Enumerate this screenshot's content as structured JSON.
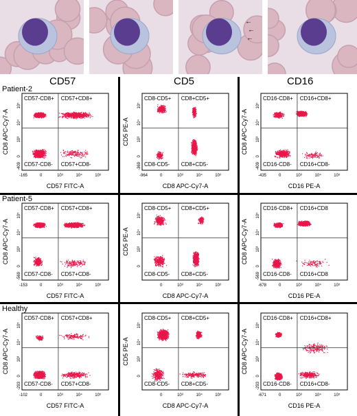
{
  "columns": [
    "CD57",
    "CD5",
    "CD16"
  ],
  "rows": [
    {
      "label": "Patient-2",
      "panels": [
        {
          "x_axis": "CD57 FITC-A",
          "y_axis": "CD8 APC-Cy7-A",
          "q_ul": "CD57-CD8+",
          "q_ur": "CD57+CD8+",
          "q_ll": "CD57-CD8-",
          "q_lr": "CD57+CD8-",
          "x_min": "-165",
          "y_min": "-409",
          "xt": [
            "0",
            "10³",
            "10⁴",
            "10⁵"
          ],
          "yt": [
            "0",
            "10³",
            "10⁴",
            "10⁵"
          ]
        },
        {
          "x_axis": "CD8 APC-Cy7-A",
          "y_axis": "CD5 PE-A",
          "q_ul": "CD8-CD5+",
          "q_ur": "CD8+CD5+",
          "q_ll": "CD8-CD5-",
          "q_lr": "CD8+CD5-",
          "x_min": "-964",
          "y_min": "-369",
          "xt": [
            "0",
            "10³",
            "10⁴",
            "10⁵"
          ],
          "yt": [
            "0",
            "10³",
            "10⁴",
            "10⁵"
          ]
        },
        {
          "x_axis": "CD16 PE-A",
          "y_axis": "CD8 APC-Cy7-A",
          "q_ul": "CD16-CD8+",
          "q_ur": "CD16+CD8+",
          "q_ll": "CD16-CD8-",
          "q_lr": "CD16+CD8-",
          "x_min": "-435",
          "y_min": "-409",
          "xt": [
            "0",
            "10³",
            "10⁴",
            "10⁵"
          ],
          "yt": [
            "0",
            "10³",
            "10⁴",
            "10⁵"
          ]
        }
      ]
    },
    {
      "label": "Patient-5",
      "panels": [
        {
          "x_axis": "CD57 FITC-A",
          "y_axis": "CD8 APC-Cy7-A",
          "q_ul": "CD57-CD8+",
          "q_ur": "CD57+CD8+",
          "q_ll": "CD57-CD8-",
          "q_lr": "CD57+CD8-",
          "x_min": "-153",
          "y_min": "-569",
          "xt": [
            "0",
            "10³",
            "10⁴",
            "10⁵"
          ],
          "yt": [
            "0",
            "10³",
            "10⁴",
            "10⁵"
          ]
        },
        {
          "x_axis": "CD8 APC-Cy7-A",
          "y_axis": "CD5 PE-A",
          "q_ul": "CD8-CD5+",
          "q_ur": "CD8+CD5+",
          "q_ll": "CD8-CD5-",
          "q_lr": "CD8+CD5-",
          "x_min": "",
          "y_min": "",
          "xt": [
            "0",
            "10³",
            "10⁴",
            "10⁵"
          ],
          "yt": [
            "0",
            "10³",
            "10⁴",
            "10⁵"
          ]
        },
        {
          "x_axis": "CD16 PE-A",
          "y_axis": "CD8 APC-Cy7-A",
          "q_ul": "CD16-CD8+",
          "q_ur": "CD16+CD8",
          "q_ll": "CD16-CD8-",
          "q_lr": "CD16+CD8",
          "x_min": "-678",
          "y_min": "-569",
          "xt": [
            "0",
            "10³",
            "10⁴",
            "10⁵"
          ],
          "yt": [
            "0",
            "10³",
            "10⁴",
            "10⁵"
          ]
        }
      ]
    },
    {
      "label": "Healthy",
      "panels": [
        {
          "x_axis": "CD57 FITC-A",
          "y_axis": "CD8 APC-Cy7-A",
          "q_ul": "CD57-CD8+",
          "q_ur": "CD57+CD8+",
          "q_ll": "CD57-CD8-",
          "q_lr": "CD57+CD8-",
          "x_min": "-102",
          "y_min": "-293",
          "xt": [
            "0",
            "10³",
            "10⁴",
            "10⁵"
          ],
          "yt": [
            "0",
            "10³",
            "10⁴",
            "10⁵"
          ]
        },
        {
          "x_axis": "CD8 APC-Cy7-A",
          "y_axis": "CD5 PE-A",
          "q_ul": "CD8-CD5+",
          "q_ur": "CD8+CD5+",
          "q_ll": "CD8-CD5-",
          "q_lr": "CD8+CD5-",
          "x_min": "",
          "y_min": "",
          "xt": [
            "0",
            "10³",
            "10⁴",
            "10⁵"
          ],
          "yt": [
            "0",
            "10³",
            "10⁴",
            "10⁵"
          ]
        },
        {
          "x_axis": "CD16 PE-A",
          "y_axis": "CD8 APC-Cy7-A",
          "q_ul": "CD16-CD8+",
          "q_ur": "CD16+CD8+",
          "q_ll": "CD16-CD8-",
          "q_lr": "CD16+CD8-",
          "x_min": "-671",
          "y_min": "-293",
          "xt": [
            "0",
            "10³",
            "10⁴",
            "10⁵"
          ],
          "yt": [
            "0",
            "10³",
            "10⁴",
            "10⁵"
          ]
        }
      ]
    }
  ],
  "colors": {
    "dots": "#e8174a",
    "micro_bg": "#e9dde6",
    "rbc": "#d9b6c0",
    "nucleus": "#5b3d8f",
    "cytoplasm": "#b9c3dd"
  }
}
